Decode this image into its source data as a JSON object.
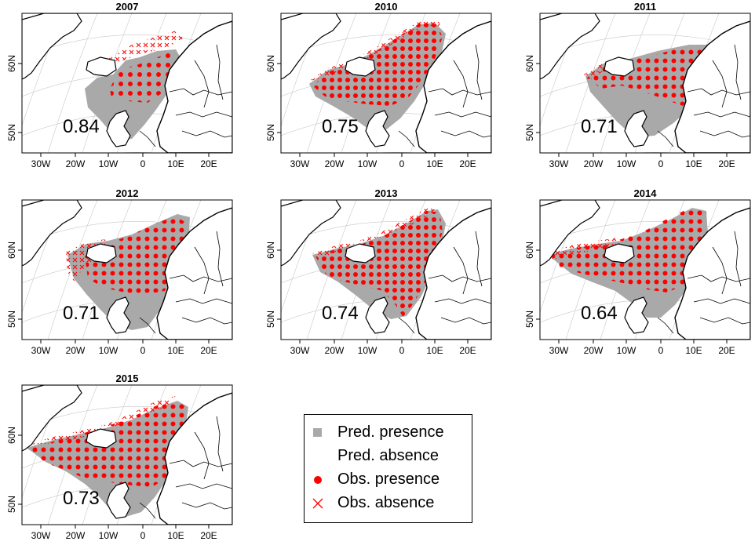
{
  "colors": {
    "pred_presence": "#a9a9a9",
    "obs_presence": "#ff0000",
    "obs_absence": "#ff0000",
    "coast": "#000000",
    "graticule": "#c8c8c8"
  },
  "axes": {
    "lon_ticks": [
      "30W",
      "20W",
      "10W",
      "0",
      "10E",
      "20E"
    ],
    "lat_ticks": [
      "60N",
      "50N"
    ]
  },
  "panels": [
    {
      "year": "2007",
      "auc": "0.84",
      "pattern": "p2007"
    },
    {
      "year": "2010",
      "auc": "0.75",
      "pattern": "p2010"
    },
    {
      "year": "2011",
      "auc": "0.71",
      "pattern": "p2011"
    },
    {
      "year": "2012",
      "auc": "0.71",
      "pattern": "p2012"
    },
    {
      "year": "2013",
      "auc": "0.74",
      "pattern": "p2013"
    },
    {
      "year": "2014",
      "auc": "0.64",
      "pattern": "p2014"
    },
    {
      "year": "2015",
      "auc": "0.73",
      "pattern": "p2015"
    }
  ],
  "legend": {
    "items": [
      {
        "label": "Pred. presence",
        "symbol": "grey-square"
      },
      {
        "label": "Pred. absence",
        "symbol": "none"
      },
      {
        "label": "Obs. presence",
        "symbol": "red-dot"
      },
      {
        "label": "Obs. absence",
        "symbol": "red-cross"
      }
    ]
  }
}
